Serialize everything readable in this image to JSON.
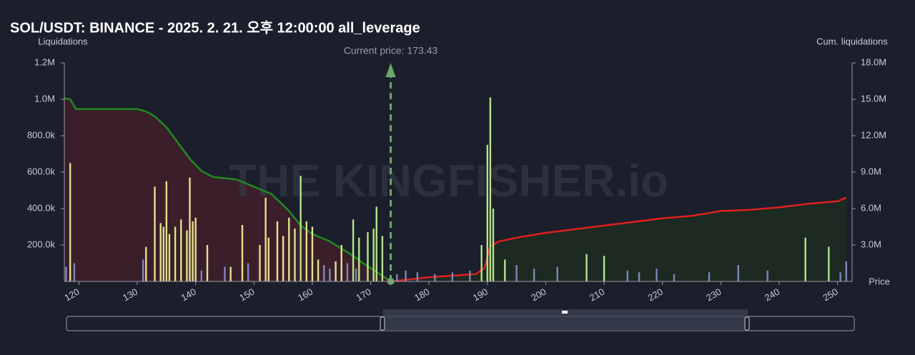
{
  "chart_data": {
    "type": "liquidation-map",
    "title": "SOL/USDT: BINANCE - 2025. 2. 21. 오후 12:00:00 all_leverage",
    "y_label": "Liquidations",
    "y2_label": "Cum. liquidations",
    "x_label": "Price",
    "watermark": "THE KINGFISHER.io",
    "current_price": {
      "value": 173.43,
      "label": "Current price: 173.43",
      "color": "#6aa86a"
    },
    "xlim": [
      117.5,
      252.5
    ],
    "xticks": [
      120,
      130,
      140,
      150,
      160,
      170,
      180,
      190,
      200,
      210,
      220,
      230,
      240,
      250
    ],
    "ylim": [
      0,
      1200000
    ],
    "yticks": [
      {
        "value": 200000,
        "label": "200.0k"
      },
      {
        "value": 400000,
        "label": "400.0k"
      },
      {
        "value": 600000,
        "label": "600.0k"
      },
      {
        "value": 800000,
        "label": "800.0k"
      },
      {
        "value": 1000000,
        "label": "1.0M"
      },
      {
        "value": 1200000,
        "label": "1.2M"
      }
    ],
    "y2lim": [
      0,
      18000000
    ],
    "y2ticks": [
      {
        "value": 3000000,
        "label": "3.0M"
      },
      {
        "value": 6000000,
        "label": "6.0M"
      },
      {
        "value": 9000000,
        "label": "9.0M"
      },
      {
        "value": 12000000,
        "label": "12.0M"
      },
      {
        "value": 15000000,
        "label": "15.0M"
      },
      {
        "value": 18000000,
        "label": "18.0M"
      }
    ],
    "bars": [
      {
        "x": 117.8,
        "value": 80000,
        "color": "#7f86b8"
      },
      {
        "x": 118.5,
        "value": 650000,
        "color": "#e4e08e"
      },
      {
        "x": 119.2,
        "value": 100000,
        "color": "#7f86b8"
      },
      {
        "x": 131,
        "value": 120000,
        "color": "#7f86b8"
      },
      {
        "x": 131.5,
        "value": 190000,
        "color": "#e4e08e"
      },
      {
        "x": 133,
        "value": 520000,
        "color": "#e4e08e"
      },
      {
        "x": 134,
        "value": 320000,
        "color": "#e4e08e"
      },
      {
        "x": 134.5,
        "value": 300000,
        "color": "#e4e08e"
      },
      {
        "x": 135,
        "value": 550000,
        "color": "#e4e08e"
      },
      {
        "x": 135.5,
        "value": 260000,
        "color": "#e4e08e"
      },
      {
        "x": 136.5,
        "value": 300000,
        "color": "#e4e08e"
      },
      {
        "x": 137.5,
        "value": 340000,
        "color": "#e4e08e"
      },
      {
        "x": 138.5,
        "value": 280000,
        "color": "#e4e08e"
      },
      {
        "x": 139,
        "value": 570000,
        "color": "#e4e08e"
      },
      {
        "x": 139.5,
        "value": 330000,
        "color": "#e4e08e"
      },
      {
        "x": 140,
        "value": 350000,
        "color": "#e4e08e"
      },
      {
        "x": 141,
        "value": 60000,
        "color": "#7f86b8"
      },
      {
        "x": 142,
        "value": 200000,
        "color": "#e4e08e"
      },
      {
        "x": 145,
        "value": 80000,
        "color": "#7f86b8"
      },
      {
        "x": 146,
        "value": 80000,
        "color": "#e4e08e"
      },
      {
        "x": 148,
        "value": 310000,
        "color": "#e4e08e"
      },
      {
        "x": 149,
        "value": 100000,
        "color": "#7f86b8"
      },
      {
        "x": 151,
        "value": 200000,
        "color": "#e4e08e"
      },
      {
        "x": 152,
        "value": 460000,
        "color": "#e4e08e"
      },
      {
        "x": 152.5,
        "value": 240000,
        "color": "#e4e08e"
      },
      {
        "x": 154,
        "value": 330000,
        "color": "#e4e08e"
      },
      {
        "x": 155,
        "value": 250000,
        "color": "#e4e08e"
      },
      {
        "x": 156,
        "value": 350000,
        "color": "#e4e08e"
      },
      {
        "x": 157,
        "value": 290000,
        "color": "#e4e08e"
      },
      {
        "x": 158,
        "value": 580000,
        "color": "#b5e58a"
      },
      {
        "x": 159,
        "value": 330000,
        "color": "#e4e08e"
      },
      {
        "x": 160,
        "value": 300000,
        "color": "#e4e08e"
      },
      {
        "x": 161,
        "value": 120000,
        "color": "#e4e08e"
      },
      {
        "x": 162,
        "value": 90000,
        "color": "#7f86b8"
      },
      {
        "x": 163,
        "value": 70000,
        "color": "#7f86b8"
      },
      {
        "x": 164,
        "value": 110000,
        "color": "#e4e08e"
      },
      {
        "x": 165,
        "value": 200000,
        "color": "#e4e08e"
      },
      {
        "x": 166,
        "value": 100000,
        "color": "#7f86b8"
      },
      {
        "x": 167,
        "value": 340000,
        "color": "#b5e58a"
      },
      {
        "x": 167.5,
        "value": 70000,
        "color": "#7f86b8"
      },
      {
        "x": 168,
        "value": 240000,
        "color": "#b5e58a"
      },
      {
        "x": 169.5,
        "value": 270000,
        "color": "#b5e58a"
      },
      {
        "x": 170.5,
        "value": 290000,
        "color": "#b5e58a"
      },
      {
        "x": 171,
        "value": 410000,
        "color": "#b5e58a"
      },
      {
        "x": 172,
        "value": 250000,
        "color": "#b5e58a"
      },
      {
        "x": 174.5,
        "value": 40000,
        "color": "#7f86b8"
      },
      {
        "x": 176,
        "value": 60000,
        "color": "#7f86b8"
      },
      {
        "x": 178,
        "value": 50000,
        "color": "#7f86b8"
      },
      {
        "x": 181,
        "value": 40000,
        "color": "#7f86b8"
      },
      {
        "x": 184,
        "value": 50000,
        "color": "#7f86b8"
      },
      {
        "x": 187,
        "value": 60000,
        "color": "#7f86b8"
      },
      {
        "x": 189,
        "value": 200000,
        "color": "#b5e58a"
      },
      {
        "x": 190,
        "value": 750000,
        "color": "#b5e58a"
      },
      {
        "x": 190.5,
        "value": 1010000,
        "color": "#b5e58a"
      },
      {
        "x": 191,
        "value": 400000,
        "color": "#b5e58a"
      },
      {
        "x": 193,
        "value": 120000,
        "color": "#b5e58a"
      },
      {
        "x": 195,
        "value": 90000,
        "color": "#7f86b8"
      },
      {
        "x": 198,
        "value": 70000,
        "color": "#7f86b8"
      },
      {
        "x": 202,
        "value": 80000,
        "color": "#7f86b8"
      },
      {
        "x": 207,
        "value": 150000,
        "color": "#b5e58a"
      },
      {
        "x": 210,
        "value": 140000,
        "color": "#b5e58a"
      },
      {
        "x": 214,
        "value": 60000,
        "color": "#7f86b8"
      },
      {
        "x": 216,
        "value": 50000,
        "color": "#7f86b8"
      },
      {
        "x": 219,
        "value": 70000,
        "color": "#7f86b8"
      },
      {
        "x": 222,
        "value": 40000,
        "color": "#7f86b8"
      },
      {
        "x": 228,
        "value": 50000,
        "color": "#7f86b8"
      },
      {
        "x": 233,
        "value": 90000,
        "color": "#7f86b8"
      },
      {
        "x": 238,
        "value": 60000,
        "color": "#7f86b8"
      },
      {
        "x": 244.5,
        "value": 240000,
        "color": "#b5e58a"
      },
      {
        "x": 248.5,
        "value": 190000,
        "color": "#b5e58a"
      },
      {
        "x": 250.5,
        "value": 50000,
        "color": "#7f86b8"
      },
      {
        "x": 251.5,
        "value": 110000,
        "color": "#7f86b8"
      }
    ],
    "lines": [
      {
        "axis": "y2",
        "color": "#1f8a1f",
        "fill": "#3a1f2b",
        "x": [
          117.5,
          118.5,
          119.5,
          130,
          131.5,
          133,
          135,
          137,
          139,
          141,
          143,
          147,
          150,
          153,
          156,
          158,
          160,
          163,
          165,
          167,
          169,
          171,
          173.43
        ],
        "values": [
          15100000,
          15000000,
          14200000,
          14200000,
          14000000,
          13600000,
          12700000,
          11400000,
          10100000,
          9100000,
          8600000,
          8400000,
          7800000,
          7200000,
          5800000,
          4600000,
          3900000,
          3300000,
          2700000,
          2100000,
          1400000,
          800000,
          0
        ]
      },
      {
        "axis": "y2",
        "color": "#e0201e",
        "fill": "#1c2a22",
        "x": [
          173.43,
          180,
          188,
          189.5,
          190.5,
          192,
          195,
          200,
          205,
          210,
          215,
          220,
          225,
          230,
          235,
          240,
          245,
          250,
          251.5
        ],
        "values": [
          0,
          350000,
          600000,
          1100000,
          2900000,
          3300000,
          3600000,
          4000000,
          4300000,
          4600000,
          4900000,
          5200000,
          5400000,
          5800000,
          5900000,
          6100000,
          6400000,
          6600000,
          6900000
        ]
      }
    ]
  }
}
